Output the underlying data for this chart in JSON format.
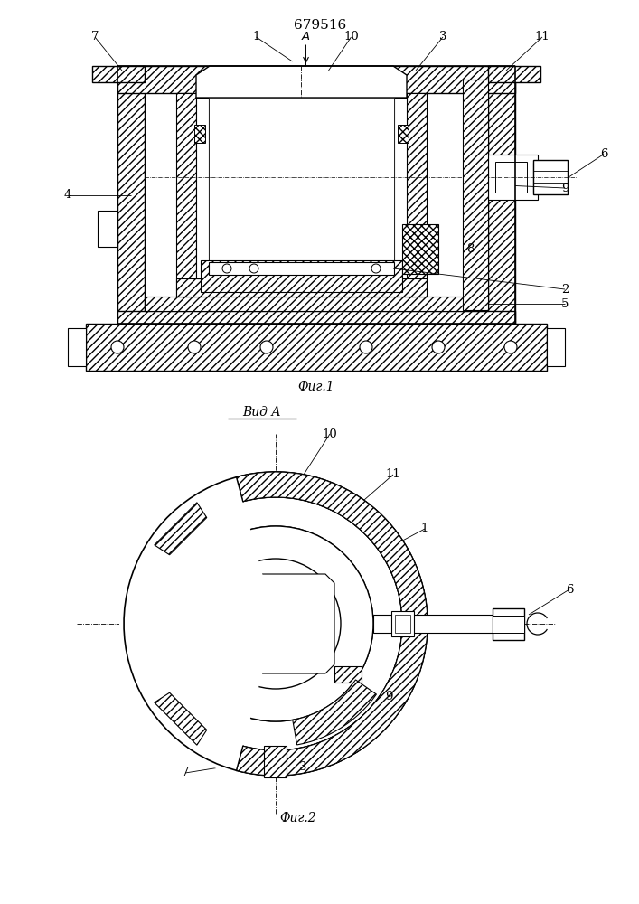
{
  "patent_number": "679516",
  "fig1_caption": "Фиг.1",
  "fig2_caption": "Фиг.2",
  "view_label": "Вид А",
  "background_color": "#ffffff"
}
